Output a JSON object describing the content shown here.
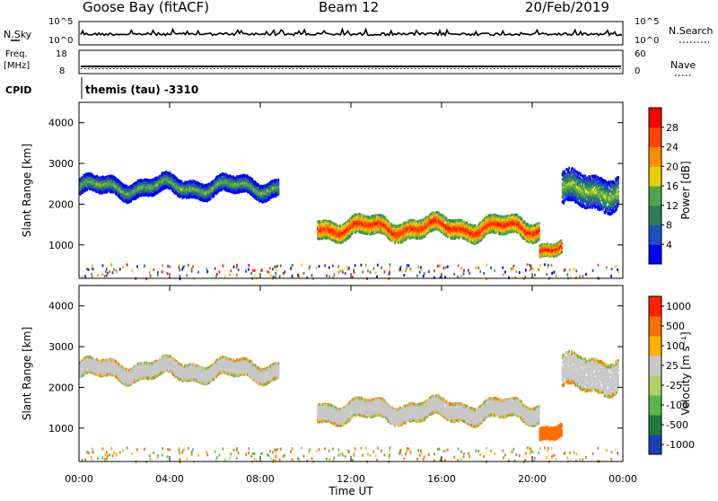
{
  "header": {
    "station": "Goose Bay (fitACF)",
    "beam": "Beam 12",
    "date": "20/Feb/2019"
  },
  "top_panels": {
    "nsky_label": "N.Sky",
    "nsky_max": "10^5",
    "nsky_min": "10^0",
    "nsearch_label": "N.Search",
    "nsearch_max": "10^5",
    "nsearch_min": "10^0",
    "freq_label_1": "Freq.",
    "freq_label_2": "[MHz]",
    "freq_max": "18",
    "freq_min": "8",
    "nave_label": "Nave",
    "nave_max": "60",
    "nave_min": "0",
    "cpid_label": "CPID",
    "cpid_value": "themis (tau) -3310"
  },
  "chart_data": [
    {
      "type": "heatmap",
      "title": "",
      "xlabel": "Time UT",
      "ylabel": "Slant Range [km]",
      "x_ticks": [
        "00:00",
        "04:00",
        "08:00",
        "12:00",
        "16:00",
        "20:00",
        "00:00"
      ],
      "x_range_hours": [
        0,
        24
      ],
      "y_ticks": [
        1000,
        2000,
        3000,
        4000
      ],
      "y_range_km": [
        180,
        4500
      ],
      "colorbar": {
        "label": "Power [dB]",
        "ticks": [
          "4",
          "8",
          "12",
          "16",
          "20",
          "24",
          "28"
        ],
        "range": [
          0,
          30
        ],
        "colors": [
          "#0000ff",
          "#1f4fbf",
          "#2e7d5a",
          "#4da64d",
          "#e6d000",
          "#ff8c00",
          "#ff4500",
          "#ff0000"
        ]
      },
      "bands": [
        {
          "t_start": 0.0,
          "t_end": 8.8,
          "range_km": 2450,
          "halfwidth_km": 200,
          "value_db": 9
        },
        {
          "t_start": 10.5,
          "t_end": 20.3,
          "range_km": 1450,
          "halfwidth_km": 220,
          "value_db": 21
        },
        {
          "t_start": 20.3,
          "t_end": 21.3,
          "range_km": 950,
          "halfwidth_km": 150,
          "value_db": 22
        },
        {
          "t_start": 21.3,
          "t_end": 23.8,
          "range_km": 2350,
          "halfwidth_km": 400,
          "value_db": 10
        }
      ]
    },
    {
      "type": "heatmap",
      "title": "",
      "xlabel": "Time UT",
      "ylabel": "Slant Range [km]",
      "x_ticks": [
        "00:00",
        "04:00",
        "08:00",
        "12:00",
        "16:00",
        "20:00",
        "00:00"
      ],
      "x_range_hours": [
        0,
        24
      ],
      "y_ticks": [
        1000,
        2000,
        3000,
        4000
      ],
      "y_range_km": [
        180,
        4500
      ],
      "colorbar": {
        "label": "Velocity [m s⁻¹]",
        "ticks": [
          "1000",
          "500",
          "100",
          "25",
          "-25",
          "-100",
          "-500",
          "-1000"
        ],
        "colors": [
          "#1a3fb0",
          "#1f7a3a",
          "#5ab84a",
          "#b0d060",
          "#c8c8c8",
          "#ffb000",
          "#ff7000",
          "#ff2000"
        ]
      },
      "bands": [
        {
          "t_start": 0.0,
          "t_end": 8.8,
          "range_km": 2450,
          "halfwidth_km": 200,
          "value_ms": 0
        },
        {
          "t_start": 10.5,
          "t_end": 20.3,
          "range_km": 1450,
          "halfwidth_km": 220,
          "value_ms": 0
        },
        {
          "t_start": 20.3,
          "t_end": 21.3,
          "range_km": 950,
          "halfwidth_km": 150,
          "value_ms": -300
        },
        {
          "t_start": 21.3,
          "t_end": 23.8,
          "range_km": 2350,
          "halfwidth_km": 400,
          "value_ms": 0
        }
      ]
    }
  ]
}
